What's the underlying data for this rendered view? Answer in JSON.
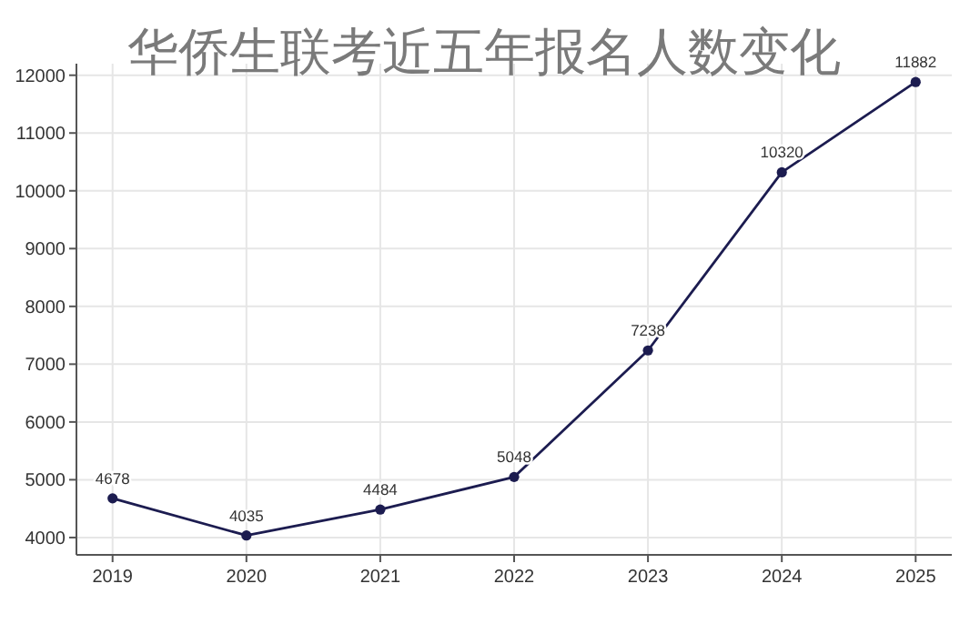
{
  "chart_data": {
    "type": "line",
    "title": "华侨生联考近五年报名人数变化",
    "categories": [
      "2019",
      "2020",
      "2021",
      "2022",
      "2023",
      "2024",
      "2025"
    ],
    "series": [
      {
        "color": "#1c1c50",
        "values": [
          4678,
          4035,
          4484,
          5048,
          7238,
          10320,
          11882
        ]
      }
    ],
    "ylim": [
      3700,
      12200
    ],
    "yticks": [
      4000,
      5000,
      6000,
      7000,
      8000,
      9000,
      10000,
      11000,
      12000
    ],
    "grid": true,
    "marker": "circle",
    "line_style": "solid",
    "data_labels": true
  }
}
